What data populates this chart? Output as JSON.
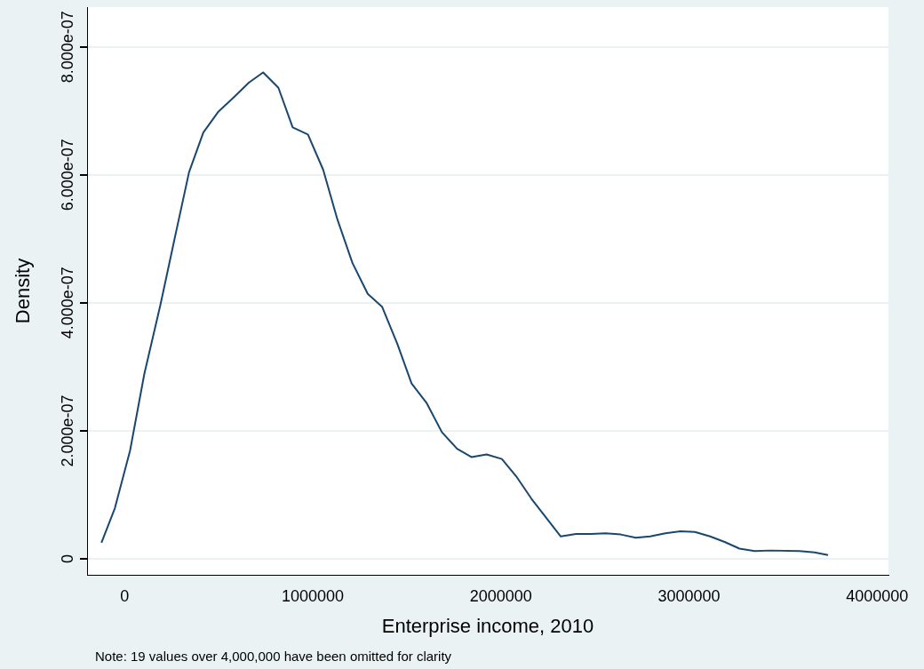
{
  "chart_data": {
    "type": "line",
    "xlabel": "Enterprise income, 2010",
    "ylabel": "Density",
    "annotations": [
      "Note: 19 values over 4,000,000 have been omitted for clarity"
    ],
    "x": [
      -123500,
      -52300,
      28500,
      104500,
      190000,
      266000,
      342000,
      418000,
      499000,
      580000,
      660000,
      736000,
      817000,
      893000,
      974000,
      1055000,
      1131000,
      1211000,
      1292000,
      1368000,
      1449000,
      1525000,
      1606000,
      1686000,
      1767000,
      1843000,
      1924000,
      2005000,
      2081000,
      2162000,
      2318000,
      2399000,
      2480000,
      2556000,
      2637000,
      2717000,
      2793000,
      2874000,
      2955000,
      3031000,
      3112000,
      3192000,
      3268000,
      3349000,
      3430000,
      3587000,
      3667000,
      3739000
    ],
    "series": [
      {
        "color": "#1a476f",
        "values": [
          2.5e-08,
          7.9e-08,
          1.69e-07,
          2.89e-07,
          3.97e-07,
          5.01e-07,
          6.04e-07,
          6.66e-07,
          6.99e-07,
          7.21e-07,
          7.44e-07,
          7.6e-07,
          7.36e-07,
          6.74e-07,
          6.63e-07,
          6.08e-07,
          5.3e-07,
          4.62e-07,
          4.14e-07,
          3.94e-07,
          3.36e-07,
          2.74e-07,
          2.43e-07,
          1.98e-07,
          1.72e-07,
          1.59e-07,
          1.63e-07,
          1.56e-07,
          1.29e-07,
          9.4e-08,
          3.5e-08,
          3.9e-08,
          3.9e-08,
          4e-08,
          3.8e-08,
          3.3e-08,
          3.5e-08,
          4e-08,
          4.3e-08,
          4.2e-08,
          3.5e-08,
          2.6e-08,
          1.6e-08,
          1.2e-08,
          1.3e-08,
          1.2e-08,
          1e-08,
          6e-09
        ]
      }
    ],
    "xlim": [
      -200000,
      4060000
    ],
    "xticks": [
      0,
      1000000,
      2000000,
      3000000,
      4000000
    ],
    "ylim": [
      -2.5e-08,
      8.62e-07
    ],
    "yticks": [
      0,
      {
        "value": 2e-07,
        "label": "2.000e-07"
      },
      {
        "value": 4e-07,
        "label": "4.000e-07"
      },
      {
        "value": 6e-07,
        "label": "6.000e-07"
      },
      {
        "value": 8e-07,
        "label": "8.000e-07"
      }
    ],
    "grid": "y",
    "legend": false,
    "marker": "none",
    "line_style": "solid"
  }
}
